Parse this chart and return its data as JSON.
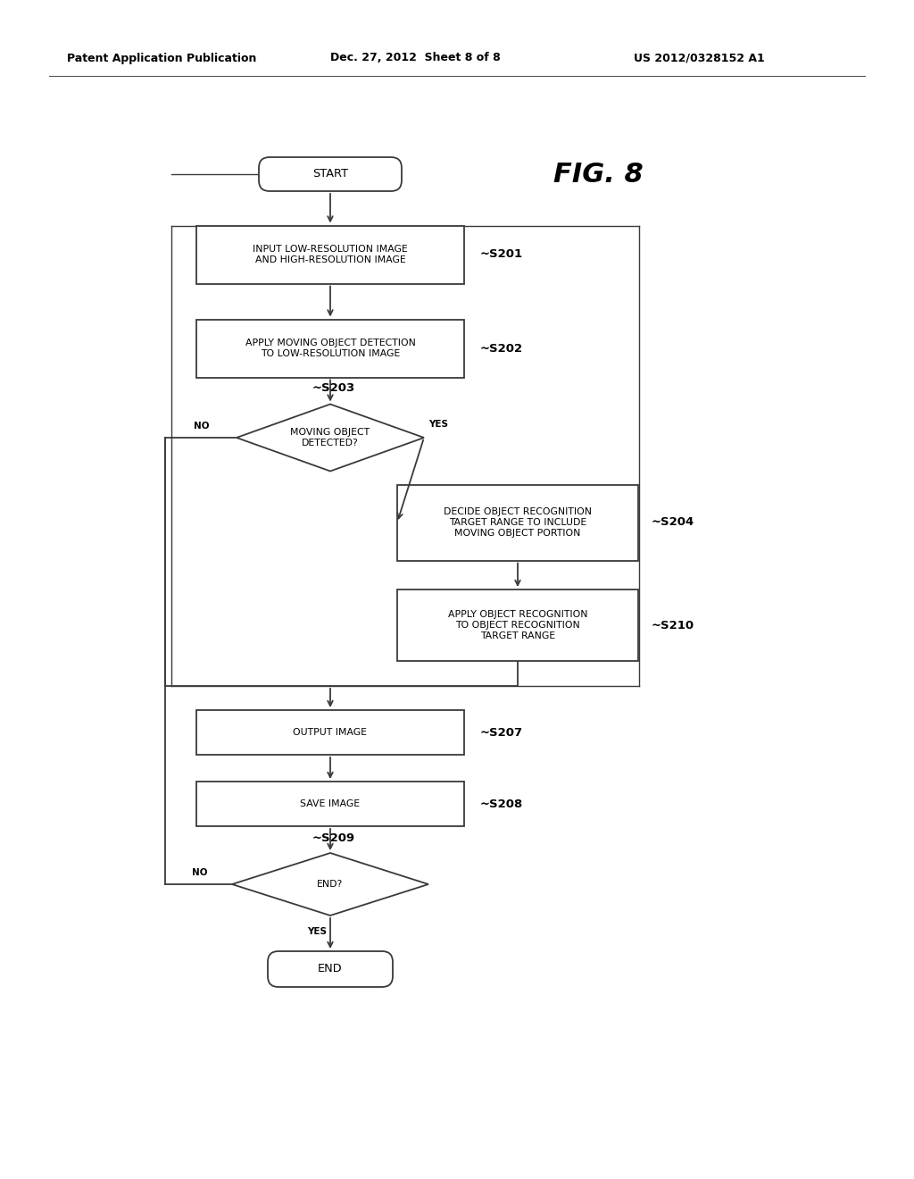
{
  "fig_width": 10.24,
  "fig_height": 13.2,
  "bg_color": "#ffffff",
  "header_text1": "Patent Application Publication",
  "header_text2": "Dec. 27, 2012  Sheet 8 of 8",
  "header_text3": "US 2012/0328152 A1",
  "fig_label": "FIG. 8",
  "line_color": "#3a3a3a",
  "text_color": "#000000",
  "font_size_box": 7.8,
  "font_size_label": 9.5,
  "font_size_header": 9.0,
  "font_size_fig": 22,
  "font_size_yn": 7.5
}
